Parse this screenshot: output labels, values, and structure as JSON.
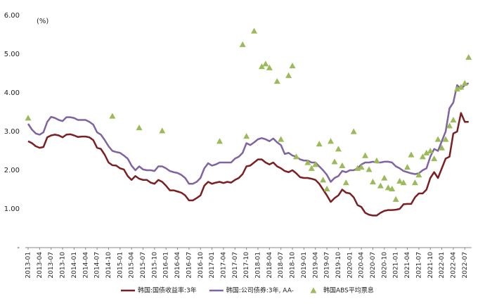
{
  "chart_data": {
    "type": "line",
    "y_label": "(%)",
    "categories": [
      "2013-01",
      null,
      null,
      "2013-04",
      null,
      null,
      "2013-07",
      null,
      null,
      "2013-10",
      null,
      null,
      "2014-01",
      null,
      null,
      "2014-04",
      null,
      null,
      "2014-07",
      null,
      null,
      "2014-10",
      null,
      null,
      "2015-01",
      null,
      null,
      "2015-04",
      null,
      null,
      "2015-07",
      null,
      null,
      "2015-10",
      null,
      null,
      "2016-01",
      null,
      null,
      "2016-04",
      null,
      null,
      "2016-07",
      null,
      null,
      "2016-10",
      null,
      null,
      "2017-01",
      null,
      null,
      "2017-04",
      null,
      null,
      "2017-07",
      null,
      null,
      "2017-10",
      null,
      null,
      "2018-01",
      null,
      null,
      "2018-04",
      null,
      null,
      "2018-07",
      null,
      null,
      "2018-10",
      null,
      null,
      "2019-01",
      null,
      null,
      "2019-04",
      null,
      null,
      "2019-07",
      null,
      null,
      "2019-10",
      null,
      null,
      "2020-01",
      null,
      null,
      "2020-04",
      null,
      null,
      "2020-07",
      null,
      null,
      "2020-10",
      null,
      null,
      "2021-01",
      null,
      null,
      "2021-04",
      null,
      null,
      "2021-07",
      null,
      null,
      "2021-10",
      null,
      null,
      "2022-01",
      null,
      null,
      "2022-04",
      null,
      null,
      "2022-07",
      null
    ],
    "series": [
      {
        "name": "韩国:国债收益率:3年",
        "color": "#7b1f22",
        "mode": "line",
        "values": [
          2.75,
          2.7,
          2.62,
          2.58,
          2.6,
          2.85,
          2.9,
          2.92,
          2.9,
          2.85,
          2.92,
          2.93,
          2.9,
          2.86,
          2.87,
          2.87,
          2.85,
          2.78,
          2.58,
          2.55,
          2.4,
          2.2,
          2.13,
          2.12,
          2.05,
          2.02,
          1.85,
          1.75,
          1.85,
          1.78,
          1.75,
          1.75,
          1.68,
          1.65,
          1.75,
          1.7,
          1.6,
          1.48,
          1.48,
          1.45,
          1.42,
          1.35,
          1.22,
          1.22,
          1.28,
          1.35,
          1.6,
          1.7,
          1.65,
          1.68,
          1.7,
          1.67,
          1.7,
          1.68,
          1.75,
          1.8,
          1.9,
          2.1,
          2.12,
          2.2,
          2.28,
          2.28,
          2.2,
          2.15,
          2.2,
          2.1,
          2.05,
          1.98,
          1.95,
          2.0,
          1.92,
          1.82,
          1.8,
          1.8,
          1.78,
          1.75,
          1.65,
          1.5,
          1.35,
          1.18,
          1.28,
          1.35,
          1.5,
          1.42,
          1.4,
          1.3,
          1.1,
          1.05,
          0.9,
          0.85,
          0.83,
          0.83,
          0.9,
          0.95,
          0.97,
          0.97,
          0.98,
          1.0,
          1.12,
          1.13,
          1.13,
          1.3,
          1.4,
          1.4,
          1.5,
          1.8,
          1.95,
          1.8,
          2.05,
          2.3,
          2.35,
          2.95,
          3.0,
          3.48,
          3.25,
          3.25
        ]
      },
      {
        "name": "韩国:公司债券:3年, AA-",
        "color": "#8064a2",
        "mode": "line",
        "values": [
          3.2,
          3.05,
          2.95,
          2.92,
          2.98,
          3.25,
          3.38,
          3.35,
          3.3,
          3.27,
          3.37,
          3.37,
          3.35,
          3.3,
          3.3,
          3.3,
          3.25,
          3.18,
          2.98,
          2.92,
          2.78,
          2.62,
          2.5,
          2.47,
          2.45,
          2.38,
          2.3,
          2.12,
          2.0,
          2.1,
          2.02,
          2.0,
          2.0,
          1.98,
          2.1,
          2.1,
          2.05,
          1.98,
          1.95,
          1.93,
          1.88,
          1.8,
          1.65,
          1.65,
          1.7,
          1.8,
          2.05,
          2.18,
          2.12,
          2.15,
          2.2,
          2.2,
          2.2,
          2.2,
          2.3,
          2.35,
          2.45,
          2.7,
          2.65,
          2.72,
          2.8,
          2.83,
          2.8,
          2.75,
          2.82,
          2.72,
          2.65,
          2.42,
          2.45,
          2.38,
          2.35,
          2.28,
          2.25,
          2.25,
          2.2,
          2.2,
          2.1,
          2.0,
          1.88,
          1.7,
          1.8,
          1.85,
          1.98,
          1.95,
          2.0,
          2.0,
          2.05,
          2.15,
          2.2,
          2.2,
          2.22,
          2.2,
          2.2,
          2.22,
          2.22,
          2.2,
          2.1,
          2.05,
          1.98,
          1.95,
          1.92,
          1.9,
          1.92,
          2.0,
          2.05,
          2.35,
          2.55,
          2.5,
          2.75,
          3.0,
          3.6,
          3.75,
          4.2,
          4.1,
          4.2,
          4.25
        ]
      },
      {
        "name": "韩国ABS平均票息",
        "color": "#9bbb59",
        "mode": "markers",
        "values": [
          3.35,
          null,
          null,
          null,
          null,
          null,
          null,
          null,
          null,
          null,
          null,
          null,
          null,
          null,
          null,
          null,
          null,
          null,
          null,
          null,
          null,
          null,
          3.4,
          null,
          null,
          null,
          null,
          null,
          null,
          3.1,
          null,
          null,
          null,
          null,
          null,
          3.02,
          null,
          null,
          null,
          null,
          null,
          null,
          null,
          null,
          null,
          null,
          null,
          null,
          null,
          null,
          2.75,
          null,
          null,
          null,
          null,
          null,
          5.25,
          2.88,
          null,
          5.6,
          null,
          4.68,
          4.75,
          4.65,
          null,
          4.3,
          2.8,
          null,
          4.45,
          4.7,
          2.35,
          null,
          null,
          2.2,
          2.05,
          2.15,
          2.68,
          1.75,
          1.52,
          2.75,
          2.22,
          2.55,
          2.12,
          1.68,
          null,
          3.0,
          2.05,
          2.08,
          2.38,
          2.02,
          1.7,
          2.25,
          1.6,
          1.8,
          1.55,
          1.52,
          1.25,
          1.72,
          1.68,
          2.08,
          2.4,
          1.68,
          1.88,
          2.35,
          2.45,
          2.5,
          2.3,
          2.8,
          2.58,
          2.8,
          3.15,
          3.3,
          4.1,
          4.15,
          4.25,
          4.92
        ]
      }
    ],
    "ylim": [
      0,
      6
    ],
    "yticks": [
      {
        "value": 0,
        "label": "-"
      },
      {
        "value": 1,
        "label": "1.00"
      },
      {
        "value": 2,
        "label": "2.00"
      },
      {
        "value": 3,
        "label": "3.00"
      },
      {
        "value": 4,
        "label": "4.00"
      },
      {
        "value": 5,
        "label": "5.00"
      },
      {
        "value": 6,
        "label": "6.00"
      }
    ],
    "grid": false,
    "legend": "bottom"
  }
}
